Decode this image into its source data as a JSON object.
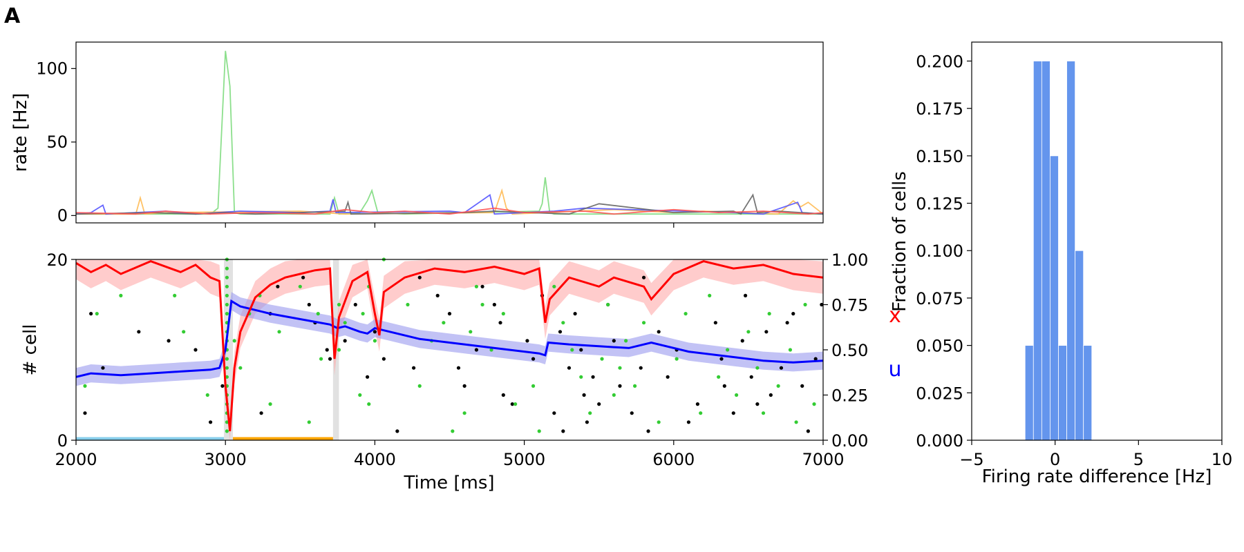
{
  "panel_letter": "A",
  "colors": {
    "x_line": "#ff0000",
    "x_band": "#ffaaaa",
    "u_line": "#0000ff",
    "u_band": "#9999ee",
    "spike_black": "#000000",
    "spike_green": "#33cc33",
    "hist_bar": "#6495ed",
    "pre_period": "#87ceeb",
    "post_period": "#ffa500",
    "stim_band": "#aaaaaa"
  },
  "chart_data": [
    {
      "id": "rate",
      "type": "line",
      "xlabel": "",
      "ylabel": "rate [Hz]",
      "xlim": [
        2000,
        7000
      ],
      "ylim": [
        -5,
        118
      ],
      "yticks": [
        0,
        50,
        100
      ],
      "xticks": [
        3000,
        4000,
        5000,
        6000
      ],
      "series": [
        {
          "color": "#7fdc7f",
          "x": [
            2000,
            2900,
            2950,
            3000,
            3030,
            3060,
            3100,
            3700,
            3730,
            3760,
            3900,
            3950,
            3980,
            4020,
            4200,
            5100,
            5120,
            5140,
            5170,
            5200,
            7000
          ],
          "y": [
            1,
            1,
            5,
            112,
            88,
            2,
            1,
            1,
            12,
            1,
            2,
            10,
            17,
            2,
            1,
            3,
            8,
            26,
            2,
            1,
            1
          ]
        },
        {
          "color": "#ffbb55",
          "x": [
            2000,
            2400,
            2430,
            2460,
            2600,
            3500,
            3800,
            4800,
            4850,
            4880,
            4920,
            5600,
            6000,
            6200,
            6700,
            6800,
            6850,
            6900,
            7000
          ],
          "y": [
            1,
            1,
            12,
            1,
            2,
            3,
            1,
            2,
            17,
            5,
            1,
            4,
            2,
            3,
            1,
            10,
            6,
            9,
            1
          ]
        },
        {
          "color": "#5555ff",
          "x": [
            2000,
            2100,
            2180,
            2200,
            2600,
            2800,
            3100,
            3500,
            3700,
            3720,
            3740,
            4500,
            4600,
            4770,
            4800,
            5200,
            5400,
            6400,
            6600,
            6830,
            6860,
            7000
          ],
          "y": [
            1,
            2,
            7,
            1,
            3,
            1,
            3,
            2,
            3,
            11,
            2,
            3,
            2,
            14,
            1,
            3,
            5,
            2,
            1,
            9,
            2,
            1
          ]
        },
        {
          "color": "#666666",
          "x": [
            2000,
            2500,
            2800,
            3000,
            3200,
            3800,
            3820,
            3840,
            4600,
            4800,
            5300,
            5500,
            6000,
            6400,
            6450,
            6530,
            6560,
            6700,
            7000
          ],
          "y": [
            1,
            2,
            1,
            2,
            1,
            3,
            9,
            1,
            2,
            3,
            1,
            8,
            2,
            3,
            1,
            14,
            2,
            3,
            1
          ]
        },
        {
          "color": "#ff5555",
          "x": [
            2000,
            2400,
            2600,
            2900,
            3200,
            3600,
            3800,
            4000,
            4200,
            4500,
            4800,
            5000,
            5400,
            5600,
            6000,
            6300,
            6600,
            6900,
            7000
          ],
          "y": [
            2,
            1,
            3,
            1,
            2,
            1,
            4,
            2,
            3,
            1,
            5,
            2,
            3,
            1,
            4,
            2,
            3,
            1,
            2
          ]
        }
      ]
    },
    {
      "id": "raster",
      "type": "scatter",
      "xlabel": "Time [ms]",
      "ylabel": "# cell",
      "y2label_x": "x",
      "y2label_u": "u",
      "xlim": [
        2000,
        7000
      ],
      "ylim": [
        0,
        20
      ],
      "yticks": [
        0,
        20
      ],
      "y2lim": [
        0,
        1
      ],
      "y2ticks": [
        "0.00",
        "0.25",
        "0.50",
        "0.75",
        "1.00"
      ],
      "xticks": [
        2000,
        3000,
        4000,
        5000,
        6000,
        7000
      ],
      "stim_bands": [
        [
          2990,
          3050
        ],
        [
          3720,
          3760
        ]
      ],
      "pre_period": [
        2000,
        2990
      ],
      "post_period": [
        3050,
        3720
      ],
      "x_resource": {
        "x": [
          2000,
          2100,
          2200,
          2300,
          2500,
          2700,
          2800,
          2900,
          2960,
          3000,
          3030,
          3060,
          3100,
          3200,
          3300,
          3400,
          3500,
          3600,
          3700,
          3730,
          3760,
          3850,
          3950,
          4000,
          4030,
          4060,
          4200,
          4400,
          4600,
          4800,
          5000,
          5100,
          5140,
          5170,
          5300,
          5500,
          5600,
          5800,
          5850,
          6000,
          6200,
          6400,
          6600,
          6800,
          7000
        ],
        "y": [
          0.98,
          0.93,
          0.97,
          0.92,
          0.99,
          0.93,
          0.97,
          0.9,
          0.88,
          0.3,
          0.05,
          0.4,
          0.6,
          0.79,
          0.86,
          0.9,
          0.92,
          0.94,
          0.95,
          0.45,
          0.68,
          0.88,
          0.93,
          0.7,
          0.58,
          0.82,
          0.9,
          0.95,
          0.93,
          0.96,
          0.92,
          0.95,
          0.65,
          0.78,
          0.9,
          0.85,
          0.9,
          0.85,
          0.78,
          0.92,
          0.99,
          0.95,
          0.97,
          0.92,
          0.9
        ]
      },
      "u_util": {
        "x": [
          2000,
          2100,
          2300,
          2500,
          2700,
          2900,
          2960,
          3000,
          3040,
          3100,
          3300,
          3500,
          3700,
          3750,
          3800,
          3900,
          3950,
          4000,
          4100,
          4300,
          4600,
          4900,
          5100,
          5140,
          5160,
          5300,
          5500,
          5700,
          5850,
          6100,
          6400,
          6600,
          6800,
          7000
        ],
        "y": [
          0.35,
          0.37,
          0.36,
          0.37,
          0.38,
          0.39,
          0.4,
          0.5,
          0.77,
          0.74,
          0.7,
          0.67,
          0.64,
          0.62,
          0.63,
          0.6,
          0.59,
          0.62,
          0.6,
          0.56,
          0.53,
          0.5,
          0.48,
          0.47,
          0.54,
          0.53,
          0.52,
          0.51,
          0.54,
          0.49,
          0.46,
          0.44,
          0.43,
          0.44
        ]
      },
      "spikes_black": [
        [
          2060,
          3
        ],
        [
          2100,
          14
        ],
        [
          2180,
          8
        ],
        [
          2420,
          12
        ],
        [
          2620,
          11
        ],
        [
          2800,
          10
        ],
        [
          2900,
          2
        ],
        [
          2980,
          6
        ],
        [
          3240,
          3
        ],
        [
          3300,
          14
        ],
        [
          3350,
          17
        ],
        [
          3520,
          18
        ],
        [
          3560,
          15
        ],
        [
          3600,
          13
        ],
        [
          3680,
          10
        ],
        [
          3700,
          9
        ],
        [
          3800,
          11
        ],
        [
          3870,
          15
        ],
        [
          3950,
          7
        ],
        [
          4000,
          12
        ],
        [
          4060,
          9
        ],
        [
          4150,
          1
        ],
        [
          4260,
          8
        ],
        [
          4300,
          18
        ],
        [
          4420,
          16
        ],
        [
          4500,
          14
        ],
        [
          4560,
          8
        ],
        [
          4600,
          6
        ],
        [
          4680,
          10
        ],
        [
          4720,
          17
        ],
        [
          4800,
          15
        ],
        [
          4840,
          13
        ],
        [
          4860,
          5
        ],
        [
          4920,
          4
        ],
        [
          5020,
          11
        ],
        [
          5060,
          9
        ],
        [
          5120,
          16
        ],
        [
          5200,
          3
        ],
        [
          5240,
          12
        ],
        [
          5260,
          1
        ],
        [
          5300,
          8
        ],
        [
          5340,
          14
        ],
        [
          5380,
          10
        ],
        [
          5400,
          5
        ],
        [
          5420,
          2
        ],
        [
          5460,
          7
        ],
        [
          5500,
          4
        ],
        [
          5560,
          15
        ],
        [
          5600,
          11
        ],
        [
          5640,
          6
        ],
        [
          5720,
          3
        ],
        [
          5780,
          8
        ],
        [
          5800,
          18
        ],
        [
          5830,
          1
        ],
        [
          5900,
          12
        ],
        [
          5960,
          7
        ],
        [
          6020,
          10
        ],
        [
          6100,
          2
        ],
        [
          6160,
          4
        ],
        [
          6280,
          13
        ],
        [
          6320,
          9
        ],
        [
          6340,
          6
        ],
        [
          6400,
          3
        ],
        [
          6460,
          11
        ],
        [
          6480,
          16
        ],
        [
          6520,
          7
        ],
        [
          6560,
          4
        ],
        [
          6620,
          12
        ],
        [
          6650,
          5
        ],
        [
          6720,
          8
        ],
        [
          6760,
          13
        ],
        [
          6800,
          14
        ],
        [
          6860,
          6
        ],
        [
          6900,
          1
        ],
        [
          6950,
          9
        ],
        [
          6990,
          15
        ]
      ],
      "spikes_green": [
        [
          2060,
          6
        ],
        [
          2140,
          14
        ],
        [
          2300,
          16
        ],
        [
          2660,
          16
        ],
        [
          2720,
          12
        ],
        [
          2880,
          5
        ],
        [
          3060,
          11
        ],
        [
          3100,
          8
        ],
        [
          3160,
          14
        ],
        [
          3230,
          16
        ],
        [
          3300,
          4
        ],
        [
          3360,
          12
        ],
        [
          3500,
          17
        ],
        [
          3560,
          2
        ],
        [
          3620,
          14
        ],
        [
          3640,
          9
        ],
        [
          3760,
          10
        ],
        [
          3760,
          15
        ],
        [
          3800,
          13
        ],
        [
          3900,
          5
        ],
        [
          3920,
          14
        ],
        [
          3960,
          4
        ],
        [
          3960,
          17
        ],
        [
          4000,
          11
        ],
        [
          4060,
          20
        ],
        [
          4220,
          15
        ],
        [
          4300,
          6
        ],
        [
          4380,
          11
        ],
        [
          4460,
          13
        ],
        [
          4520,
          1
        ],
        [
          4600,
          3
        ],
        [
          4640,
          12
        ],
        [
          4680,
          17
        ],
        [
          4720,
          15
        ],
        [
          4780,
          10
        ],
        [
          4860,
          14
        ],
        [
          4940,
          4
        ],
        [
          5060,
          6
        ],
        [
          5100,
          1
        ],
        [
          5200,
          17
        ],
        [
          5260,
          13
        ],
        [
          5320,
          10
        ],
        [
          5380,
          7
        ],
        [
          5440,
          3
        ],
        [
          5520,
          9
        ],
        [
          5560,
          15
        ],
        [
          5600,
          5
        ],
        [
          5640,
          8
        ],
        [
          5680,
          11
        ],
        [
          5740,
          6
        ],
        [
          5800,
          13
        ],
        [
          5900,
          2
        ],
        [
          6020,
          9
        ],
        [
          6080,
          14
        ],
        [
          6180,
          3
        ],
        [
          6240,
          16
        ],
        [
          6300,
          7
        ],
        [
          6360,
          10
        ],
        [
          6420,
          5
        ],
        [
          6500,
          12
        ],
        [
          6560,
          8
        ],
        [
          6600,
          3
        ],
        [
          6640,
          14
        ],
        [
          6700,
          6
        ],
        [
          6780,
          10
        ],
        [
          6820,
          2
        ],
        [
          6880,
          15
        ],
        [
          6940,
          4
        ]
      ]
    },
    {
      "id": "hist",
      "type": "bar",
      "xlabel": "Firing rate difference [Hz]",
      "ylabel": "Fraction of cells",
      "xlim": [
        -5,
        10
      ],
      "ylim": [
        0,
        0.21
      ],
      "xticks": [
        -5,
        0,
        5,
        10
      ],
      "xtick_labels": [
        "−5",
        "0",
        "5",
        "10"
      ],
      "yticks": [
        "0.000",
        "0.025",
        "0.050",
        "0.075",
        "0.100",
        "0.125",
        "0.150",
        "0.175",
        "0.200"
      ],
      "bin_edges": [
        -1.8,
        -1.3,
        -0.8,
        -0.3,
        0.2,
        0.7,
        1.2,
        1.7,
        2.2
      ],
      "values": [
        0.05,
        0.2,
        0.2,
        0.15,
        0.05,
        0.2,
        0.1,
        0.05
      ]
    }
  ]
}
